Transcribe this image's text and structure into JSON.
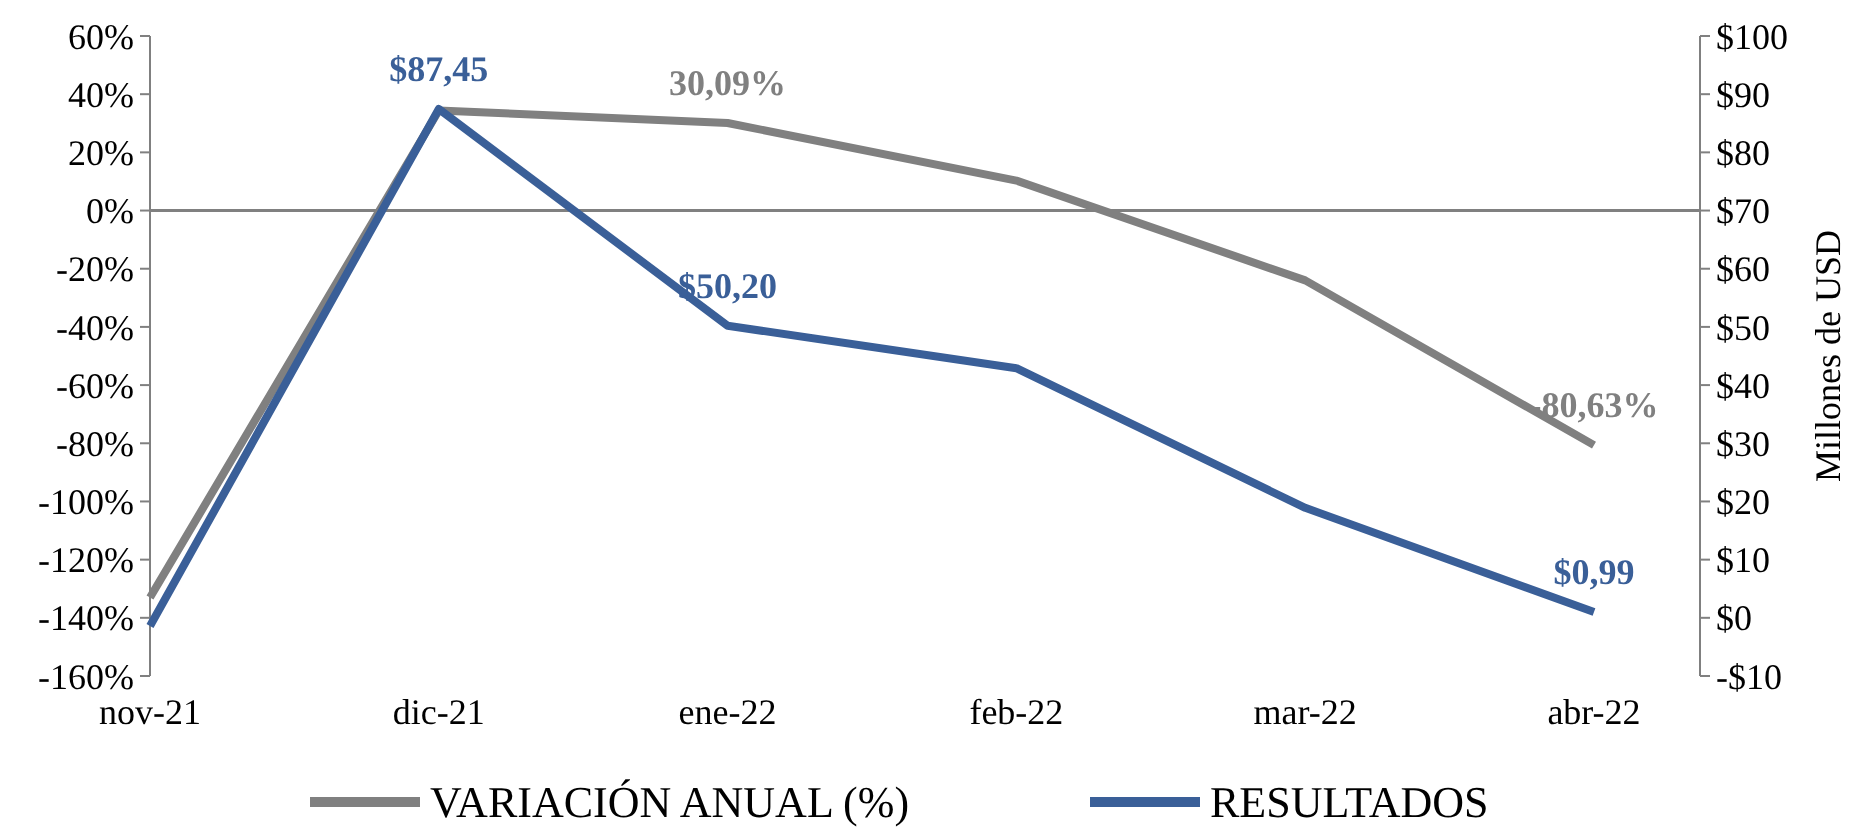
{
  "chart_data": {
    "type": "line",
    "categories": [
      "nov-21",
      "dic-21",
      "ene-22",
      "feb-22",
      "mar-22",
      "abr-22"
    ],
    "series": [
      {
        "name": "VARIACIÓN ANUAL (%)",
        "color": "#808080",
        "values": [
          -133,
          34.4,
          30.09,
          10.3,
          -24,
          -80.63
        ],
        "value_labels": [
          null,
          null,
          "30,09%",
          null,
          null,
          "-80,63%"
        ]
      },
      {
        "name": "RESULTADOS",
        "color": "#3a5f98",
        "axis": "y2",
        "values": [
          -1.4,
          87.45,
          50.2,
          42.9,
          18.9,
          0.99
        ],
        "value_labels": [
          null,
          "$87,45",
          "$50,20",
          null,
          null,
          "$0,99"
        ]
      }
    ],
    "ylim": [
      -160,
      60
    ],
    "yticks": [
      {
        "value": -160,
        "label": "-160%"
      },
      {
        "value": -140,
        "label": "-140%"
      },
      {
        "value": -120,
        "label": "-120%"
      },
      {
        "value": -100,
        "label": "-100%"
      },
      {
        "value": -80,
        "label": "-80%"
      },
      {
        "value": -60,
        "label": "-60%"
      },
      {
        "value": -40,
        "label": "-40%"
      },
      {
        "value": -20,
        "label": "-20%"
      },
      {
        "value": 0,
        "label": "0%"
      },
      {
        "value": 20,
        "label": "20%"
      },
      {
        "value": 40,
        "label": "40%"
      },
      {
        "value": 60,
        "label": "60%"
      }
    ],
    "y2lim": [
      -10,
      100
    ],
    "y2ticks": [
      {
        "value": -10,
        "label": "-$10"
      },
      {
        "value": 0,
        "label": "$0"
      },
      {
        "value": 10,
        "label": "$10"
      },
      {
        "value": 20,
        "label": "$20"
      },
      {
        "value": 30,
        "label": "$30"
      },
      {
        "value": 40,
        "label": "$40"
      },
      {
        "value": 50,
        "label": "$50"
      },
      {
        "value": 60,
        "label": "$60"
      },
      {
        "value": 70,
        "label": "$70"
      },
      {
        "value": 80,
        "label": "$80"
      },
      {
        "value": 90,
        "label": "$90"
      },
      {
        "value": 100,
        "label": "$100"
      }
    ],
    "y2label": "Millones de USD",
    "ref_lines": [
      {
        "axis": "y",
        "value": 0,
        "color": "#808080"
      }
    ],
    "grid": false,
    "legend": "bottom",
    "marker": "none",
    "line_style": "solid"
  }
}
